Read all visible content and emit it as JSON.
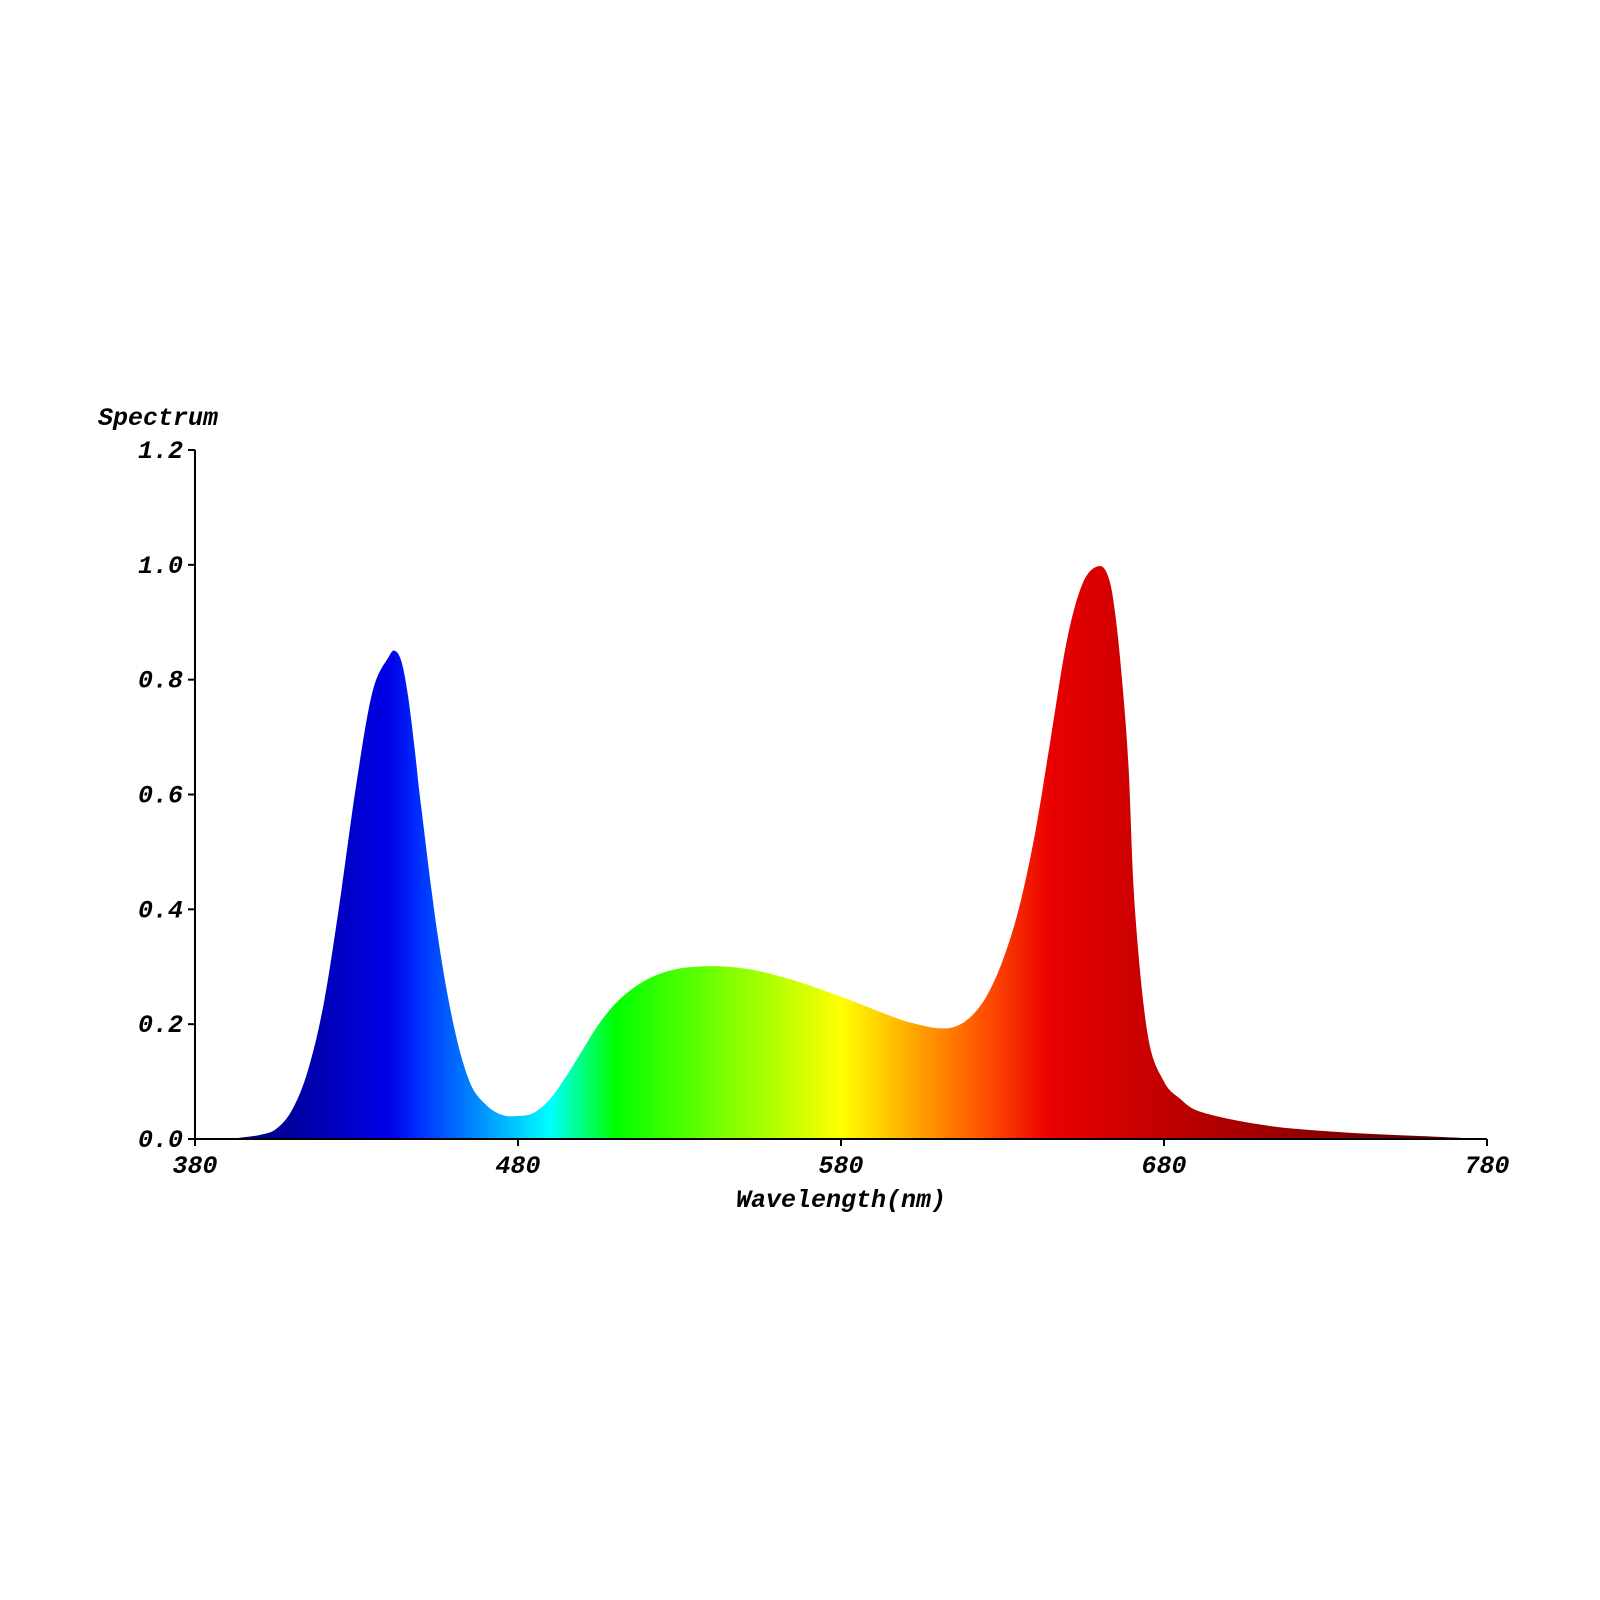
{
  "chart_data": {
    "type": "area",
    "title": "",
    "ylabel": "Spectrum",
    "xlabel": "Wavelength(nm)",
    "xlim": [
      380,
      780
    ],
    "ylim": [
      0,
      1.2
    ],
    "x_ticks": [
      "380",
      "480",
      "580",
      "680",
      "780"
    ],
    "y_ticks": [
      "0.0",
      "0.2",
      "0.4",
      "0.6",
      "0.8",
      "1.0",
      "1.2"
    ],
    "grid": false,
    "fill": "wavelength-colored spectrum gradient",
    "series": [
      {
        "x": [
          380,
          390,
          395,
          400,
          405,
          410,
          415,
          420,
          425,
          430,
          435,
          440,
          442,
          444,
          446,
          448,
          450,
          455,
          460,
          465,
          470,
          475,
          480,
          485,
          490,
          495,
          500,
          505,
          510,
          515,
          520,
          525,
          530,
          535,
          540,
          545,
          550,
          555,
          560,
          565,
          570,
          575,
          580,
          585,
          590,
          595,
          600,
          605,
          610,
          615,
          620,
          625,
          630,
          635,
          640,
          645,
          650,
          655,
          660,
          663,
          665,
          667,
          669,
          671,
          675,
          680,
          685,
          690,
          700,
          710,
          720,
          740,
          760,
          780
        ],
        "y": [
          0.0,
          0.0,
          0.003,
          0.007,
          0.017,
          0.05,
          0.12,
          0.24,
          0.42,
          0.62,
          0.78,
          0.84,
          0.85,
          0.83,
          0.77,
          0.68,
          0.58,
          0.36,
          0.2,
          0.1,
          0.06,
          0.042,
          0.04,
          0.046,
          0.07,
          0.11,
          0.155,
          0.2,
          0.235,
          0.26,
          0.278,
          0.29,
          0.297,
          0.3,
          0.301,
          0.3,
          0.297,
          0.292,
          0.285,
          0.277,
          0.268,
          0.258,
          0.248,
          0.237,
          0.226,
          0.215,
          0.205,
          0.198,
          0.193,
          0.195,
          0.212,
          0.248,
          0.31,
          0.4,
          0.53,
          0.7,
          0.87,
          0.97,
          0.998,
          0.975,
          0.91,
          0.8,
          0.65,
          0.4,
          0.18,
          0.1,
          0.07,
          0.05,
          0.035,
          0.025,
          0.018,
          0.01,
          0.005,
          0.0
        ]
      }
    ]
  }
}
